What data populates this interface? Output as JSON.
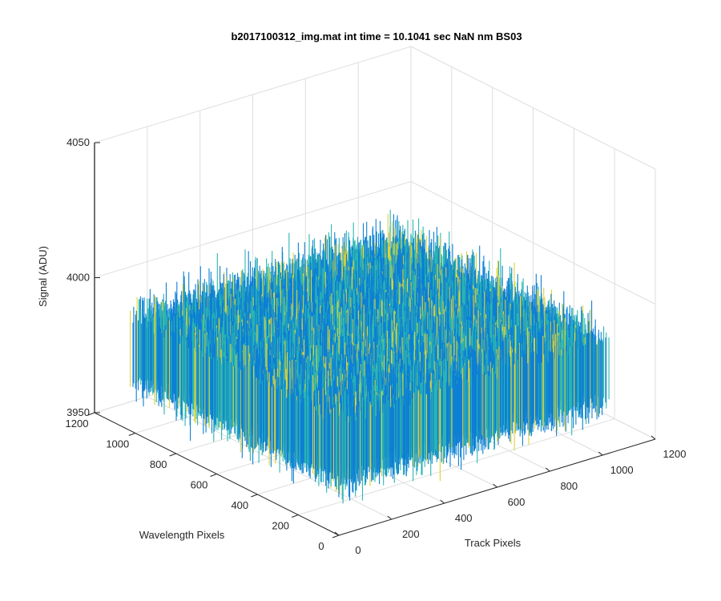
{
  "chart_data": {
    "type": "surface",
    "title": "b2017100312_img.mat int time = 10.1041 sec  NaN nm BS03",
    "xlabel": "Track Pixels",
    "ylabel": "Wavelength Pixels",
    "zlabel": "Signal (ADU)",
    "xlim": [
      0,
      1200
    ],
    "ylim": [
      0,
      1200
    ],
    "zlim": [
      3950,
      4050
    ],
    "xticks": [
      "0",
      "200",
      "400",
      "600",
      "800",
      "1000",
      "1200"
    ],
    "yticks": [
      "0",
      "200",
      "400",
      "600",
      "800",
      "1000",
      "1200"
    ],
    "zticks": [
      "3950",
      "4000",
      "4050"
    ],
    "grid": true,
    "colormap": "parula",
    "data_extent": {
      "x": [
        0,
        1024
      ],
      "y": [
        0,
        1024
      ]
    },
    "signal_level": {
      "mean": 3980,
      "min": 3955,
      "max": 4015
    },
    "colors": {
      "cool": "#0d7fd4",
      "mid": "#2bb5b1",
      "warm": "#dcd33a"
    }
  }
}
